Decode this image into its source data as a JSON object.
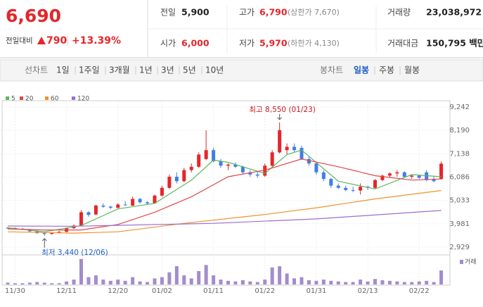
{
  "header": {
    "price": "6,690",
    "change_label": "전일대비",
    "change": "790",
    "change_rate": "+13.39%",
    "stats": [
      {
        "label": "전일",
        "value": "5,900"
      },
      {
        "label": "고가",
        "value": "6,790",
        "note": "(상한가 7,670)"
      },
      {
        "label": "거래량",
        "value": "23,038,972"
      },
      {
        "label": "시가",
        "value": "6,000"
      },
      {
        "label": "저가",
        "value": "5,970",
        "note": "(하한가 4,130)"
      },
      {
        "label": "거래대금",
        "value": "150,795 백만"
      }
    ]
  },
  "tabs": {
    "line_label": "선차트",
    "periods": [
      "1일",
      "1주일",
      "3개월",
      "1년",
      "3년",
      "5년",
      "10년"
    ],
    "candle_label": "봉차트",
    "candles": [
      "일봉",
      "주봉",
      "월봉"
    ],
    "selected": "일봉"
  },
  "chart_data": {
    "type": "candlestick",
    "up_color": "#e4262b",
    "down_color": "#3f7ee8",
    "volume_color": "#a38ccc",
    "volume_label": "거래",
    "categories": [
      null,
      "11/30",
      null,
      null,
      null,
      null,
      null,
      null,
      "12/11",
      null,
      null,
      null,
      null,
      null,
      null,
      "12/20",
      null,
      null,
      null,
      null,
      null,
      "01/02",
      null,
      null,
      null,
      null,
      null,
      null,
      "01/11",
      null,
      null,
      null,
      null,
      null,
      null,
      "01/22",
      null,
      null,
      null,
      null,
      null,
      null,
      "01/31",
      null,
      null,
      null,
      null,
      null,
      null,
      "02/13",
      null,
      null,
      null,
      null,
      null,
      null,
      "02/22",
      null,
      null,
      null
    ],
    "open": [
      3800,
      3790,
      3760,
      3720,
      3640,
      3560,
      3520,
      3580,
      3620,
      3780,
      3900,
      4500,
      4400,
      4800,
      4750,
      4700,
      4850,
      4800,
      5100,
      4950,
      4900,
      5250,
      5600,
      6100,
      5900,
      6400,
      6550,
      6900,
      7300,
      6800,
      6600,
      6650,
      6550,
      6300,
      6200,
      6150,
      6600,
      7200,
      7300,
      7450,
      7400,
      6900,
      6700,
      6300,
      6000,
      5700,
      5600,
      5500,
      5480,
      5650,
      5600,
      5950,
      6150,
      6250,
      6300,
      6100,
      6150,
      6300,
      6000,
      6000
    ],
    "high": [
      3830,
      3820,
      3790,
      3750,
      3660,
      3600,
      3600,
      3650,
      3800,
      3950,
      4600,
      4550,
      4850,
      4900,
      4800,
      4900,
      5000,
      5200,
      5150,
      5000,
      5300,
      5700,
      6200,
      6300,
      6500,
      6700,
      7200,
      8200,
      7400,
      6900,
      6700,
      6750,
      6600,
      6400,
      6350,
      6700,
      7300,
      8550,
      7600,
      7600,
      7500,
      7000,
      6750,
      6400,
      6050,
      5800,
      5700,
      5650,
      5800,
      5700,
      6000,
      6200,
      6300,
      6400,
      6350,
      6200,
      6200,
      6400,
      6100,
      6790
    ],
    "low": [
      3760,
      3740,
      3700,
      3600,
      3520,
      3440,
      3500,
      3560,
      3600,
      3750,
      3880,
      4300,
      4380,
      4700,
      4650,
      4680,
      4780,
      4780,
      4900,
      4850,
      4880,
      5200,
      5550,
      5800,
      5850,
      6300,
      6500,
      6850,
      6750,
      6500,
      6400,
      6500,
      6200,
      6100,
      6050,
      6100,
      6550,
      7150,
      7100,
      7200,
      6850,
      6600,
      6200,
      5900,
      5600,
      5550,
      5450,
      5400,
      5300,
      5500,
      5550,
      5900,
      6050,
      6100,
      6050,
      6000,
      6000,
      5900,
      5850,
      5970
    ],
    "close": [
      3790,
      3760,
      3720,
      3640,
      3560,
      3520,
      3580,
      3620,
      3780,
      3900,
      4500,
      4380,
      4800,
      4750,
      4700,
      4850,
      4820,
      5100,
      4950,
      4900,
      5250,
      5600,
      6100,
      5900,
      6400,
      6550,
      7100,
      7300,
      6800,
      6600,
      6650,
      6550,
      6300,
      6200,
      6150,
      6600,
      7200,
      8200,
      7450,
      7300,
      6900,
      6700,
      6300,
      6000,
      5700,
      5600,
      5500,
      5480,
      5650,
      5600,
      5950,
      6150,
      6250,
      6300,
      6100,
      6150,
      6050,
      5950,
      5900,
      6690
    ],
    "volume": [
      3000000,
      2000000,
      2000000,
      3000000,
      4000000,
      3000000,
      2000000,
      2000000,
      5000000,
      8000000,
      42000000,
      12000000,
      15000000,
      8000000,
      6000000,
      8000000,
      6000000,
      12000000,
      5000000,
      4000000,
      10000000,
      12000000,
      20000000,
      30000000,
      15000000,
      10000000,
      22000000,
      32000000,
      15000000,
      8000000,
      6000000,
      5000000,
      7000000,
      5000000,
      4000000,
      8000000,
      28000000,
      30000000,
      18000000,
      10000000,
      12000000,
      7000000,
      6000000,
      8000000,
      6000000,
      5000000,
      4000000,
      4000000,
      8000000,
      5000000,
      9000000,
      7000000,
      6000000,
      5000000,
      4000000,
      4000000,
      5000000,
      6000000,
      4000000,
      23038972
    ],
    "volume_lim": [
      0,
      44000000
    ],
    "series": [
      {
        "name": "5",
        "color": "#5cb85c",
        "x": [
          0,
          5,
          10,
          15,
          20,
          25,
          28,
          30,
          35,
          38,
          40,
          45,
          50,
          55,
          59
        ],
        "values": [
          3800,
          3620,
          3900,
          4650,
          4900,
          5950,
          6850,
          6750,
          6250,
          7100,
          7300,
          5900,
          5550,
          6200,
          6100
        ]
      },
      {
        "name": "20",
        "color": "#e0474c",
        "x": [
          0,
          5,
          10,
          15,
          20,
          25,
          30,
          35,
          40,
          45,
          50,
          55,
          59
        ],
        "values": [
          3750,
          3700,
          3700,
          3950,
          4500,
          5200,
          6100,
          6400,
          6900,
          6550,
          6150,
          5950,
          6000
        ]
      },
      {
        "name": "60",
        "color": "#f0922b",
        "x": [
          0,
          9,
          15,
          24,
          35,
          42,
          50,
          59
        ],
        "values": [
          3620,
          3560,
          3620,
          4000,
          4400,
          4700,
          5100,
          5480
        ]
      },
      {
        "name": "120",
        "color": "#9b6fcf",
        "x": [
          0,
          9,
          28,
          42,
          59
        ],
        "values": [
          3880,
          3870,
          4000,
          4200,
          4580
        ]
      }
    ],
    "ylim": [
      2578,
      9465
    ],
    "yticks": [
      {
        "value": 9242,
        "label": "9,242"
      },
      {
        "value": 8190,
        "label": "8,190"
      },
      {
        "value": 7138,
        "label": "7,138"
      },
      {
        "value": 6086,
        "label": "6,086"
      },
      {
        "value": 5033,
        "label": "5,033"
      },
      {
        "value": 3981,
        "label": "3,981"
      },
      {
        "value": 2929,
        "label": "2,929"
      }
    ],
    "annotations": [
      {
        "text": "최고 8,550 (01/23)",
        "index": 37,
        "value": 8550
      },
      {
        "text": "최저 3,440 (12/06)",
        "index": 5,
        "value": 3440
      }
    ]
  }
}
